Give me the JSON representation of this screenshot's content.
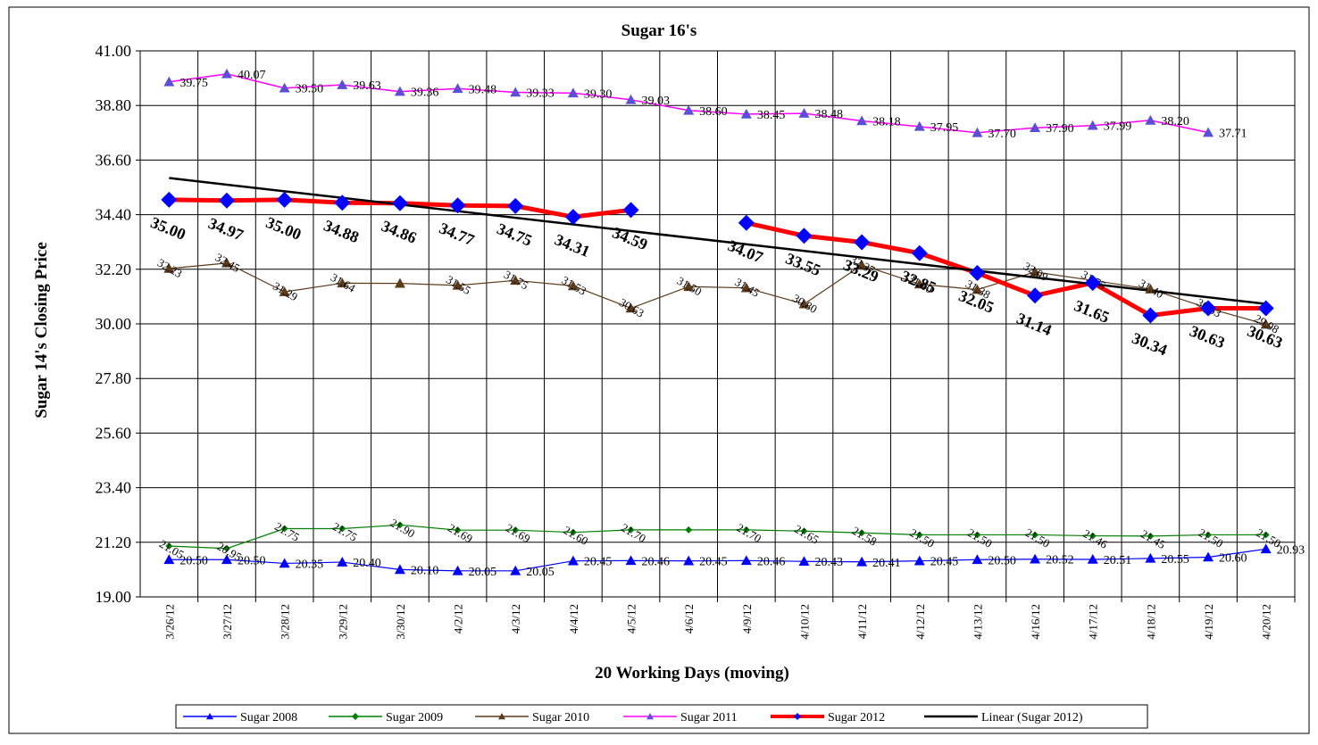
{
  "chart_data": {
    "type": "line",
    "title": "Sugar 16's",
    "y_label": "Sugar 14's Closing Price",
    "x_label": "20 Working Days (moving)",
    "categories": [
      "3/26/12",
      "3/27/12",
      "3/28/12",
      "3/29/12",
      "3/30/12",
      "4/2/12",
      "4/3/12",
      "4/4/12",
      "4/5/12",
      "4/6/12",
      "4/9/12",
      "4/10/12",
      "4/11/12",
      "4/12/12",
      "4/13/12",
      "4/16/12",
      "4/17/12",
      "4/18/12",
      "4/19/12",
      "4/20/12"
    ],
    "ylim": [
      19,
      41
    ],
    "yticks": [
      {
        "value": 19,
        "label": "19.00"
      },
      {
        "value": 21.2,
        "label": "21.20"
      },
      {
        "value": 23.4,
        "label": "23.40"
      },
      {
        "value": 25.6,
        "label": "25.60"
      },
      {
        "value": 27.8,
        "label": "27.80"
      },
      {
        "value": 30,
        "label": "30.00"
      },
      {
        "value": 32.2,
        "label": "32.20"
      },
      {
        "value": 34.4,
        "label": "34.40"
      },
      {
        "value": 36.6,
        "label": "36.60"
      },
      {
        "value": 38.8,
        "label": "38.80"
      },
      {
        "value": 41,
        "label": "41.00"
      }
    ],
    "grid": true,
    "legend": "bottom",
    "series": [
      {
        "name": "Sugar 2008",
        "color": "#0000ff",
        "marker": "triangle",
        "marker_color": "#0000ff",
        "values": [
          20.5,
          20.5,
          20.35,
          20.4,
          20.1,
          20.05,
          20.05,
          20.45,
          20.46,
          20.45,
          20.46,
          20.43,
          20.41,
          20.45,
          20.5,
          20.52,
          20.51,
          20.55,
          20.6,
          20.93
        ],
        "value_labels": [
          "20.50",
          "20.50",
          "20.35",
          "20.40",
          "20.10",
          "20.05",
          "20.05",
          "20.45",
          "20.46",
          "20.45",
          "20.46",
          "20.43",
          "20.41",
          "20.45",
          "20.50",
          "20.52",
          "20.51",
          "20.55",
          "20.60",
          "20.93"
        ]
      },
      {
        "name": "Sugar 2009",
        "color": "#008000",
        "marker": "diamond",
        "marker_color": "#008000",
        "values": [
          21.05,
          20.95,
          21.75,
          21.75,
          21.9,
          21.69,
          21.69,
          21.6,
          21.7,
          21.7,
          21.7,
          21.65,
          21.58,
          21.5,
          21.5,
          21.5,
          21.46,
          21.45,
          21.5,
          21.5
        ],
        "value_labels": [
          "21.05",
          "20.95",
          "21.75",
          "21.75",
          "21.90",
          "21.69",
          "21.69",
          "21.60",
          "21.70",
          null,
          "21.70",
          "21.65",
          "21.58",
          "21.50",
          "21.50",
          "21.50",
          "21.46",
          "21.45",
          "21.50",
          "21.50"
        ]
      },
      {
        "name": "Sugar 2010",
        "color": "#5c3a1a",
        "marker": "triangle",
        "marker_color": "#5c3a1a",
        "values": [
          32.23,
          32.45,
          31.29,
          31.64,
          31.63,
          31.55,
          31.75,
          31.53,
          30.63,
          31.5,
          31.45,
          30.8,
          32.37,
          31.6,
          31.38,
          32.09,
          31.75,
          31.4,
          30.63,
          29.98
        ],
        "value_labels": [
          "32.23",
          "32.45",
          "31.29",
          "31.64",
          null,
          "31.55",
          "31.75",
          "31.53",
          "30.63",
          "31.50",
          "31.45",
          "30.80",
          "32.37",
          "31.60",
          "31.38",
          "32.09",
          "31.75",
          "31.40",
          "30.63",
          "29.98"
        ]
      },
      {
        "name": "Sugar 2011",
        "color": "#ff00ff",
        "marker": "triangle",
        "marker_color": "#5a4fd6",
        "values": [
          39.75,
          40.07,
          39.5,
          39.63,
          39.36,
          39.48,
          39.33,
          39.3,
          39.03,
          38.6,
          38.45,
          38.48,
          38.18,
          37.95,
          37.7,
          37.9,
          37.99,
          38.2,
          37.71,
          null
        ],
        "value_labels": [
          "39.75",
          "40.07",
          "39.50",
          "39.63",
          "39.36",
          "39.48",
          "39.33",
          "39.30",
          "39.03",
          "38.60",
          "38.45",
          "38.48",
          "38.18",
          "37.95",
          "37.70",
          "37.90",
          "37.99",
          "38.20",
          "37.71",
          null
        ]
      },
      {
        "name": "Sugar 2012",
        "color": "#ff0000",
        "marker": "diamond",
        "marker_color": "#0000ff",
        "values": [
          35,
          34.97,
          35,
          34.88,
          34.86,
          34.77,
          34.75,
          34.31,
          34.59,
          null,
          34.07,
          33.55,
          33.29,
          32.85,
          32.05,
          31.14,
          31.65,
          30.34,
          30.63,
          30.63
        ],
        "value_labels": [
          "35.00",
          "34.97",
          "35.00",
          "34.88",
          "34.86",
          "34.77",
          "34.75",
          "34.31",
          "34.59",
          null,
          "34.07",
          "33.55",
          "33.29",
          "32.85",
          "32.05",
          "31.14",
          "31.65",
          "30.34",
          "30.63",
          "30.63"
        ]
      }
    ],
    "trendline": {
      "name": "Linear (Sugar 2012)",
      "series": 4,
      "color": "#000000"
    }
  }
}
